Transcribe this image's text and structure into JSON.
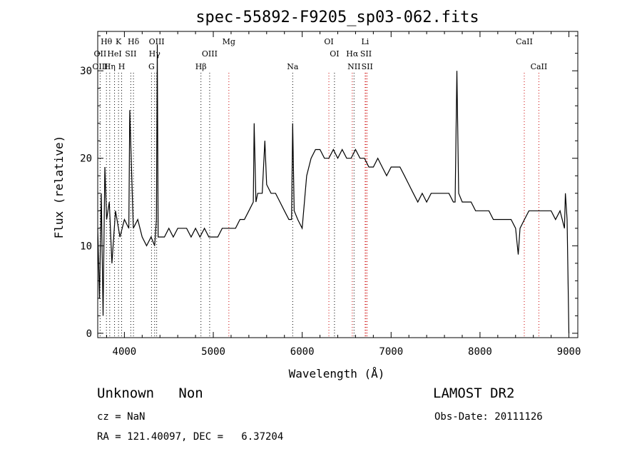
{
  "chart_data": {
    "type": "line",
    "title": "spec-55892-F9205_sp03-062.fits",
    "xlabel": "Wavelength (Å)",
    "ylabel": "Flux (relative)",
    "xlim": [
      3700,
      9100
    ],
    "ylim": [
      -0.5,
      34.5
    ],
    "x_ticks": [
      4000,
      5000,
      6000,
      7000,
      8000,
      9000
    ],
    "y_ticks": [
      0,
      10,
      20,
      30
    ],
    "series": [
      {
        "line_color": "#000000",
        "x": [
          3700,
          3720,
          3740,
          3760,
          3780,
          3800,
          3830,
          3860,
          3900,
          3950,
          4000,
          4050,
          4060,
          4100,
          4150,
          4200,
          4250,
          4300,
          4340,
          4360,
          4370,
          4380,
          4400,
          4450,
          4500,
          4550,
          4600,
          4650,
          4700,
          4750,
          4800,
          4850,
          4900,
          4950,
          5000,
          5050,
          5100,
          5150,
          5200,
          5250,
          5300,
          5350,
          5400,
          5450,
          5460,
          5480,
          5500,
          5550,
          5580,
          5600,
          5650,
          5700,
          5750,
          5800,
          5850,
          5880,
          5893,
          5910,
          5950,
          6000,
          6050,
          6100,
          6150,
          6200,
          6250,
          6300,
          6350,
          6400,
          6450,
          6500,
          6550,
          6600,
          6650,
          6700,
          6750,
          6800,
          6850,
          6900,
          6950,
          7000,
          7050,
          7100,
          7150,
          7200,
          7250,
          7300,
          7350,
          7400,
          7450,
          7500,
          7550,
          7600,
          7650,
          7700,
          7720,
          7740,
          7760,
          7800,
          7850,
          7900,
          7950,
          8000,
          8050,
          8100,
          8150,
          8200,
          8250,
          8300,
          8350,
          8400,
          8430,
          8450,
          8500,
          8550,
          8600,
          8650,
          8700,
          8750,
          8800,
          8850,
          8900,
          8950,
          8960,
          8980,
          9000
        ],
        "y": [
          12,
          4,
          16,
          2,
          19,
          13,
          15,
          8,
          14,
          11,
          13,
          12,
          25.5,
          12,
          13,
          11,
          10,
          11,
          10,
          13,
          33,
          11,
          11,
          11,
          12,
          11,
          12,
          12,
          12,
          11,
          12,
          11,
          12,
          11,
          11,
          11,
          12,
          12,
          12,
          12,
          13,
          13,
          14,
          15,
          24,
          15,
          16,
          16,
          22,
          17,
          16,
          16,
          15,
          14,
          13,
          13,
          24,
          14,
          13,
          12,
          18,
          20,
          21,
          21,
          20,
          20,
          21,
          20,
          21,
          20,
          20,
          21,
          20,
          20,
          19,
          19,
          20,
          19,
          18,
          19,
          19,
          19,
          18,
          17,
          16,
          15,
          16,
          15,
          16,
          16,
          16,
          16,
          16,
          15,
          15,
          30,
          16,
          15,
          15,
          15,
          14,
          14,
          14,
          14,
          13,
          13,
          13,
          13,
          13,
          12,
          9,
          12,
          13,
          14,
          14,
          14,
          14,
          14,
          14,
          13,
          14,
          12,
          16,
          13,
          0
        ]
      }
    ],
    "line_markers": [
      {
        "label": "Hθ",
        "x": 3798,
        "row": 0,
        "color": "#000000"
      },
      {
        "label": "K",
        "x": 3934,
        "row": 0,
        "color": "#000000"
      },
      {
        "label": "Hδ",
        "x": 4102,
        "row": 0,
        "color": "#000000"
      },
      {
        "label": "OIII",
        "x": 4363,
        "row": 0,
        "color": "#000000"
      },
      {
        "label": "Mg",
        "x": 5175,
        "row": 0,
        "color": "#000000"
      },
      {
        "label": "OI",
        "x": 6300,
        "row": 0,
        "color": "#000000"
      },
      {
        "label": "Li",
        "x": 6708,
        "row": 0,
        "color": "#000000"
      },
      {
        "label": "CaII",
        "x": 8498,
        "row": 0,
        "color": "#000000"
      },
      {
        "label": "OII",
        "x": 3727,
        "row": 1,
        "color": "#000000"
      },
      {
        "label": "HeI",
        "x": 3889,
        "row": 1,
        "color": "#000000"
      },
      {
        "label": "SII",
        "x": 4072,
        "row": 1,
        "color": "#000000"
      },
      {
        "label": "Hγ",
        "x": 4340,
        "row": 1,
        "color": "#000000"
      },
      {
        "label": "OIII",
        "x": 4959,
        "row": 1,
        "color": "#000000"
      },
      {
        "label": "OI",
        "x": 6363,
        "row": 1,
        "color": "#000000"
      },
      {
        "label": "Hα",
        "x": 6563,
        "row": 1,
        "color": "#000000"
      },
      {
        "label": "SII",
        "x": 6717,
        "row": 1,
        "color": "#000000"
      },
      {
        "label": "OIII",
        "x": 3727,
        "row": 2,
        "color": "#000000"
      },
      {
        "label": "Hη",
        "x": 3835,
        "row": 2,
        "color": "#000000"
      },
      {
        "label": "H",
        "x": 3969,
        "row": 2,
        "color": "#000000"
      },
      {
        "label": "G",
        "x": 4305,
        "row": 2,
        "color": "#000000"
      },
      {
        "label": "Hβ",
        "x": 4861,
        "row": 2,
        "color": "#000000"
      },
      {
        "label": "Na",
        "x": 5893,
        "row": 2,
        "color": "#000000"
      },
      {
        "label": "NII",
        "x": 6583,
        "row": 2,
        "color": "#000000"
      },
      {
        "label": "SII",
        "x": 6731,
        "row": 2,
        "color": "#000000"
      },
      {
        "label": "CaII",
        "x": 8662,
        "row": 2,
        "color": "#000000"
      }
    ],
    "marker_lines": [
      {
        "x": 3727,
        "color": "#000000"
      },
      {
        "x": 3798,
        "color": "#000000"
      },
      {
        "x": 3835,
        "color": "#000000"
      },
      {
        "x": 3889,
        "color": "#000000"
      },
      {
        "x": 3934,
        "color": "#000000"
      },
      {
        "x": 3969,
        "color": "#000000"
      },
      {
        "x": 4072,
        "color": "#000000"
      },
      {
        "x": 4102,
        "color": "#000000"
      },
      {
        "x": 4305,
        "color": "#000000"
      },
      {
        "x": 4340,
        "color": "#000000"
      },
      {
        "x": 4363,
        "color": "#000000"
      },
      {
        "x": 4861,
        "color": "#000000"
      },
      {
        "x": 4959,
        "color": "#000000"
      },
      {
        "x": 5175,
        "color": "#cc0000"
      },
      {
        "x": 5893,
        "color": "#000000"
      },
      {
        "x": 6300,
        "color": "#cc0000"
      },
      {
        "x": 6363,
        "color": "#000000"
      },
      {
        "x": 6563,
        "color": "#cc0000"
      },
      {
        "x": 6583,
        "color": "#000000"
      },
      {
        "x": 6708,
        "color": "#cc0000"
      },
      {
        "x": 6717,
        "color": "#cc0000"
      },
      {
        "x": 6731,
        "color": "#cc0000"
      },
      {
        "x": 8498,
        "color": "#cc0000"
      },
      {
        "x": 8662,
        "color": "#cc0000"
      }
    ]
  },
  "info": {
    "class_text": "Unknown   Non",
    "survey_text": "LAMOST DR2",
    "cz_text": "cz = NaN",
    "obs_date_text": "Obs-Date: 20111126",
    "radec_text": "RA = 121.40097, DEC =   6.37204"
  }
}
